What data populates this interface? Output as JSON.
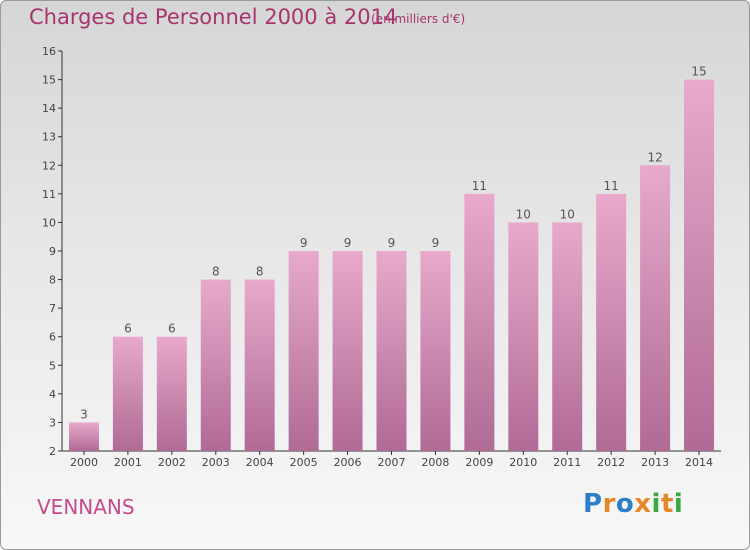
{
  "title": "Charges de Personnel 2000 à 2014",
  "subtitle": "(en milliers d'€)",
  "commune": "VENNANS",
  "logo": {
    "text": "Proxiti",
    "letters": [
      "P",
      "r",
      "o",
      "x",
      "i",
      "t",
      "i"
    ],
    "colors": [
      "#2d7fc8",
      "#e5882a",
      "#2d7fc8",
      "#e5882a",
      "#3aa843",
      "#e5882a",
      "#3aa843"
    ]
  },
  "colors": {
    "title": "#a8346e",
    "bar_top": "#e8a9cc",
    "bar_bottom": "#b06b94",
    "commune": "#c54b8a"
  },
  "chart_data": {
    "type": "bar",
    "categories": [
      "2000",
      "2001",
      "2002",
      "2003",
      "2004",
      "2005",
      "2006",
      "2007",
      "2008",
      "2009",
      "2010",
      "2011",
      "2012",
      "2013",
      "2014"
    ],
    "values": [
      3,
      6,
      6,
      8,
      8,
      9,
      9,
      9,
      9,
      11,
      10,
      10,
      11,
      12,
      15
    ],
    "data_labels": [
      "3",
      "6",
      "6",
      "8",
      "8",
      "9",
      "9",
      "9",
      "9",
      "11",
      "10",
      "10",
      "11",
      "12",
      "15"
    ],
    "title": "Charges de Personnel 2000 à 2014",
    "xlabel": "",
    "ylabel": "",
    "ylim": [
      2,
      16
    ],
    "yticks": [
      2,
      3,
      4,
      5,
      6,
      7,
      8,
      9,
      10,
      11,
      12,
      13,
      14,
      15,
      16
    ],
    "grid": false,
    "legend": "none"
  }
}
